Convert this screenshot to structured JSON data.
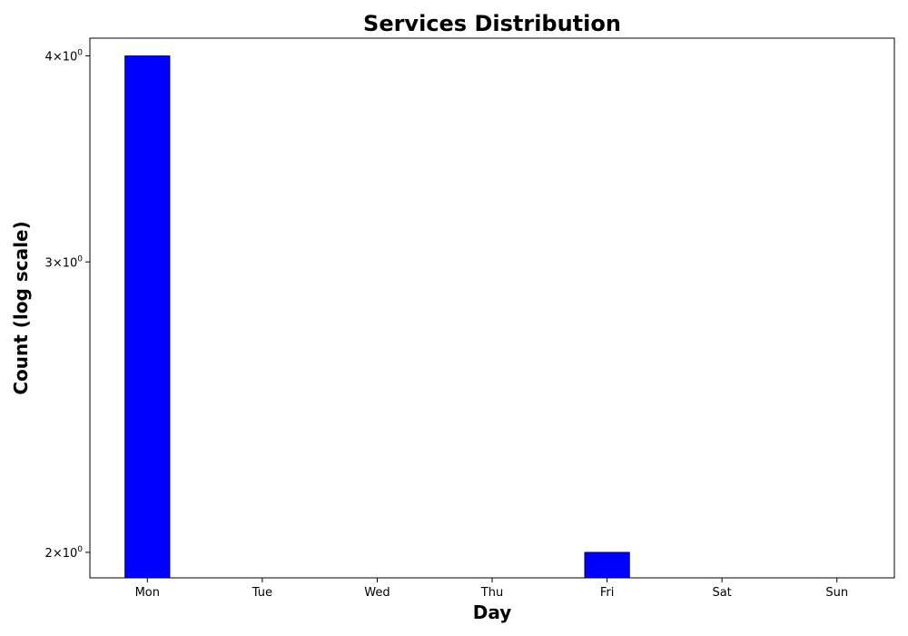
{
  "chart_data": {
    "type": "bar",
    "title": "Services Distribution",
    "xlabel": "Day",
    "ylabel": "Count (log scale)",
    "yscale": "log",
    "ylim": [
      1.93,
      4.1
    ],
    "categories": [
      "Mon",
      "Tue",
      "Wed",
      "Thu",
      "Fri",
      "Sat",
      "Sun"
    ],
    "values": [
      4,
      0,
      0,
      0,
      2,
      0,
      0
    ],
    "yticks": [
      {
        "value": 2,
        "label_base": "2",
        "label_exp": "0"
      },
      {
        "value": 3,
        "label_base": "3",
        "label_exp": "0"
      },
      {
        "value": 4,
        "label_base": "4",
        "label_exp": "0"
      }
    ],
    "bar_color": "#0000ff",
    "grid": false,
    "legend": "none"
  }
}
